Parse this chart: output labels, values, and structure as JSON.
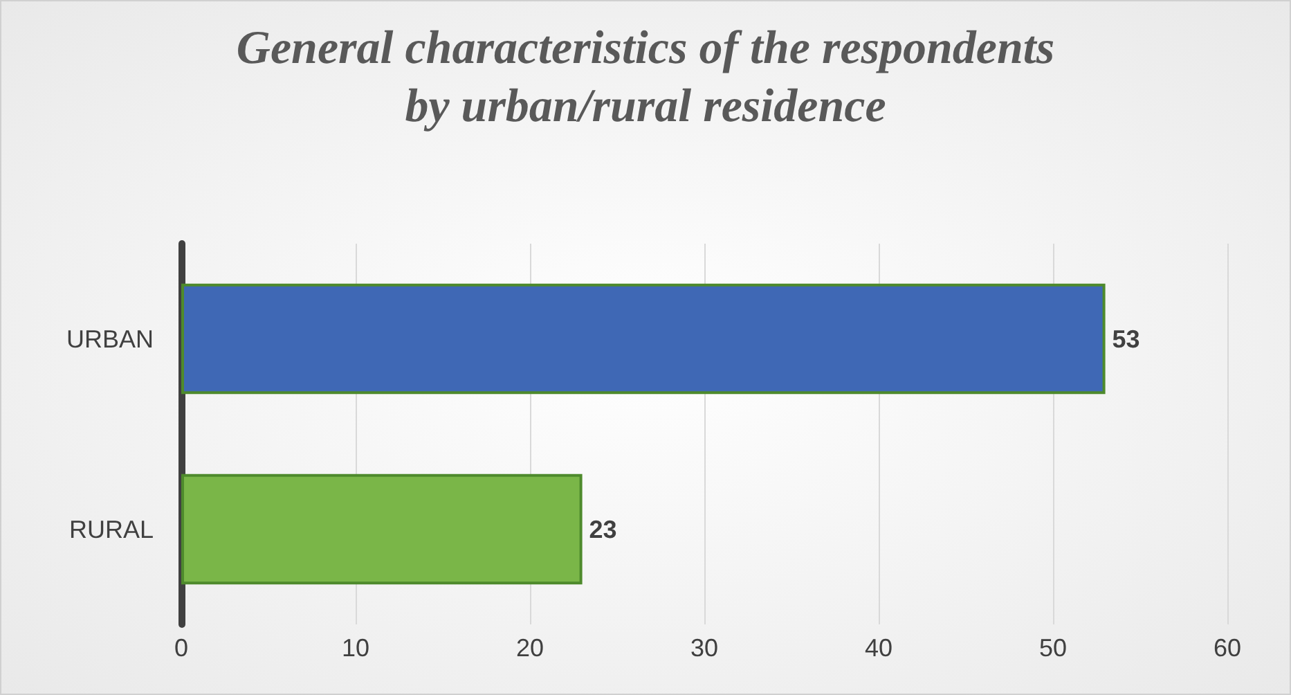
{
  "chart_data": {
    "type": "bar",
    "orientation": "horizontal",
    "title": "General characteristics of the respondents\nby urban/rural residence",
    "categories": [
      "URBAN",
      "RURAL"
    ],
    "values": [
      53,
      23
    ],
    "colors": [
      "#3f68b5",
      "#7ab648"
    ],
    "xlim": [
      0,
      60
    ],
    "xticks": [
      0,
      10,
      20,
      30,
      40,
      50,
      60
    ],
    "grid": "x",
    "data_labels": true
  }
}
